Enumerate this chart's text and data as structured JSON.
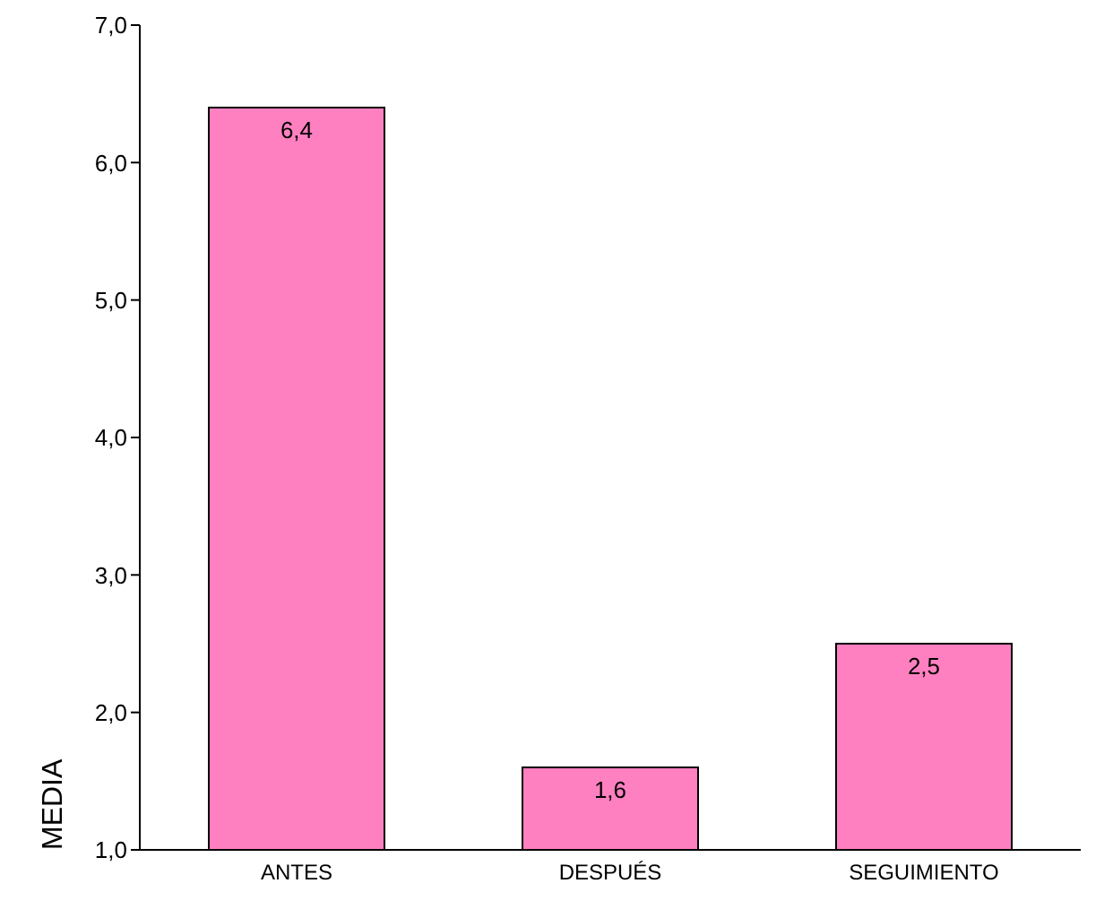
{
  "chart_data": {
    "type": "bar",
    "ylabel": "MEDIA",
    "categories": [
      "ANTES",
      "DESPUÉS",
      "SEGUIMIENTO"
    ],
    "values": [
      6.4,
      1.6,
      2.5
    ],
    "value_labels": [
      "6,4",
      "1,6",
      "2,5"
    ],
    "color": "#ff80c0",
    "ylim": [
      1,
      7
    ],
    "yticks": [
      {
        "value": 1,
        "label": "1,0"
      },
      {
        "value": 2,
        "label": "2,0"
      },
      {
        "value": 3,
        "label": "3,0"
      },
      {
        "value": 4,
        "label": "4,0"
      },
      {
        "value": 5,
        "label": "5,0"
      },
      {
        "value": 6,
        "label": "6,0"
      },
      {
        "value": 7,
        "label": "7,0"
      }
    ],
    "grid": false,
    "legend": false
  }
}
